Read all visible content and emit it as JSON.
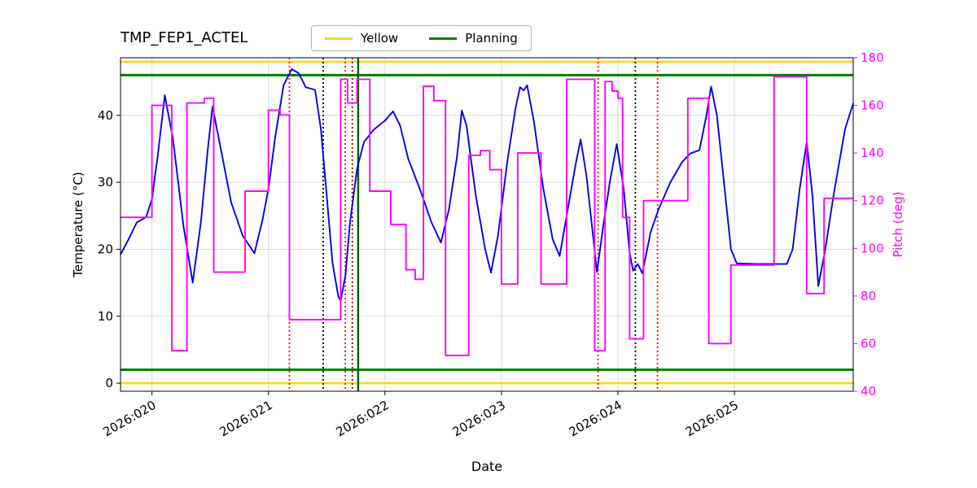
{
  "title": "TMP_FEP1_ACTEL",
  "legend": {
    "items": [
      {
        "label": "Yellow",
        "color": "#ffd700"
      },
      {
        "label": "Planning",
        "color": "#008000"
      }
    ]
  },
  "axes": {
    "x_label": "Date",
    "y_left_label": "Temperature (°C)",
    "y_right_label": "Pitch (deg)",
    "x_ticks": [
      {
        "value": 20,
        "label": "2026:020"
      },
      {
        "value": 21,
        "label": "2026:021"
      },
      {
        "value": 22,
        "label": "2026:022"
      },
      {
        "value": 23,
        "label": "2026:023"
      },
      {
        "value": 24,
        "label": "2026:024"
      },
      {
        "value": 25,
        "label": "2026:025"
      }
    ],
    "y_left_ticks": [
      0,
      10,
      20,
      30,
      40
    ],
    "y_right_ticks": [
      40,
      60,
      80,
      100,
      120,
      140,
      160,
      180
    ]
  },
  "chart_data": {
    "type": "line",
    "title": "TMP_FEP1_ACTEL",
    "xlabel": "Date",
    "ylabel_left": "Temperature (°C)",
    "ylabel_right": "Pitch (deg)",
    "grid": true,
    "xlim": [
      19.73,
      26.02
    ],
    "ylim_left": [
      -1.2,
      48.6
    ],
    "ylim_right": [
      40,
      180
    ],
    "colors": {
      "temperature": "#0000ee",
      "pitch": "#ff00ff",
      "yellow_limit": "#ffd700",
      "planning_limit": "#008000",
      "grid": "#d9d9d9"
    },
    "series": [
      {
        "name": "Temperature",
        "axis": "left",
        "style": "line",
        "color": "#0000ee",
        "points": [
          [
            19.73,
            19.2
          ],
          [
            19.8,
            21.5
          ],
          [
            19.87,
            24.0
          ],
          [
            19.95,
            24.8
          ],
          [
            20.0,
            27.5
          ],
          [
            20.05,
            34.0
          ],
          [
            20.11,
            43.0
          ],
          [
            20.18,
            36.5
          ],
          [
            20.27,
            23.5
          ],
          [
            20.35,
            15.0
          ],
          [
            20.42,
            24.0
          ],
          [
            20.48,
            35.0
          ],
          [
            20.52,
            41.3
          ],
          [
            20.58,
            36.0
          ],
          [
            20.68,
            27.0
          ],
          [
            20.78,
            22.0
          ],
          [
            20.88,
            19.4
          ],
          [
            20.95,
            24.5
          ],
          [
            21.0,
            29.0
          ],
          [
            21.06,
            37.0
          ],
          [
            21.13,
            44.5
          ],
          [
            21.2,
            46.9
          ],
          [
            21.26,
            46.3
          ],
          [
            21.32,
            44.2
          ],
          [
            21.4,
            43.8
          ],
          [
            21.45,
            38.0
          ],
          [
            21.5,
            28.0
          ],
          [
            21.55,
            18.0
          ],
          [
            21.6,
            12.9
          ],
          [
            21.62,
            12.3
          ],
          [
            21.66,
            16.0
          ],
          [
            21.7,
            24.0
          ],
          [
            21.76,
            32.0
          ],
          [
            21.82,
            36.0
          ],
          [
            21.9,
            37.8
          ],
          [
            22.0,
            39.2
          ],
          [
            22.07,
            40.6
          ],
          [
            22.13,
            38.5
          ],
          [
            22.2,
            33.5
          ],
          [
            22.3,
            29.0
          ],
          [
            22.4,
            24.0
          ],
          [
            22.48,
            21.0
          ],
          [
            22.55,
            26.0
          ],
          [
            22.62,
            34.0
          ],
          [
            22.66,
            40.7
          ],
          [
            22.7,
            38.5
          ],
          [
            22.78,
            28.0
          ],
          [
            22.86,
            20.0
          ],
          [
            22.91,
            16.5
          ],
          [
            22.97,
            22.0
          ],
          [
            23.05,
            33.0
          ],
          [
            23.12,
            41.0
          ],
          [
            23.16,
            44.2
          ],
          [
            23.19,
            43.7
          ],
          [
            23.22,
            44.5
          ],
          [
            23.28,
            39.0
          ],
          [
            23.36,
            29.0
          ],
          [
            23.44,
            21.5
          ],
          [
            23.5,
            19.0
          ],
          [
            23.57,
            26.0
          ],
          [
            23.64,
            33.0
          ],
          [
            23.68,
            36.4
          ],
          [
            23.73,
            31.0
          ],
          [
            23.78,
            23.0
          ],
          [
            23.82,
            16.6
          ],
          [
            23.87,
            23.0
          ],
          [
            23.93,
            30.0
          ],
          [
            23.99,
            35.7
          ],
          [
            24.05,
            29.0
          ],
          [
            24.1,
            19.5
          ],
          [
            24.13,
            16.8
          ],
          [
            24.17,
            17.8
          ],
          [
            24.21,
            16.4
          ],
          [
            24.28,
            22.5
          ],
          [
            24.35,
            26.0
          ],
          [
            24.45,
            30.0
          ],
          [
            24.55,
            33.0
          ],
          [
            24.62,
            34.3
          ],
          [
            24.7,
            34.8
          ],
          [
            24.76,
            40.0
          ],
          [
            24.8,
            44.3
          ],
          [
            24.85,
            40.0
          ],
          [
            24.91,
            30.0
          ],
          [
            24.97,
            20.0
          ],
          [
            25.02,
            17.9
          ],
          [
            25.2,
            17.8
          ],
          [
            25.45,
            17.8
          ],
          [
            25.5,
            20.0
          ],
          [
            25.56,
            29.0
          ],
          [
            25.62,
            36.0
          ],
          [
            25.67,
            28.0
          ],
          [
            25.72,
            14.5
          ],
          [
            25.78,
            20.0
          ],
          [
            25.85,
            28.0
          ],
          [
            25.95,
            38.0
          ],
          [
            26.02,
            41.8
          ]
        ]
      },
      {
        "name": "Pitch",
        "axis": "right",
        "style": "step",
        "color": "#ff00ff",
        "points": [
          [
            19.73,
            113
          ],
          [
            20.0,
            160
          ],
          [
            20.17,
            57
          ],
          [
            20.3,
            161
          ],
          [
            20.45,
            163
          ],
          [
            20.53,
            90
          ],
          [
            20.8,
            124
          ],
          [
            21.0,
            158
          ],
          [
            21.1,
            156
          ],
          [
            21.18,
            70
          ],
          [
            21.62,
            171
          ],
          [
            21.68,
            161
          ],
          [
            21.76,
            171
          ],
          [
            21.87,
            124
          ],
          [
            22.05,
            110
          ],
          [
            22.18,
            91
          ],
          [
            22.26,
            87
          ],
          [
            22.33,
            168
          ],
          [
            22.42,
            162
          ],
          [
            22.52,
            55
          ],
          [
            22.72,
            139
          ],
          [
            22.82,
            141
          ],
          [
            22.9,
            133
          ],
          [
            23.0,
            85
          ],
          [
            23.14,
            140
          ],
          [
            23.34,
            85
          ],
          [
            23.56,
            171
          ],
          [
            23.8,
            57
          ],
          [
            23.89,
            170
          ],
          [
            23.95,
            166
          ],
          [
            24.0,
            163
          ],
          [
            24.04,
            113
          ],
          [
            24.1,
            62
          ],
          [
            24.22,
            120
          ],
          [
            24.6,
            163
          ],
          [
            24.78,
            60
          ],
          [
            24.97,
            93
          ],
          [
            25.34,
            172
          ],
          [
            25.62,
            81
          ],
          [
            25.77,
            121
          ]
        ]
      }
    ],
    "hlines": [
      {
        "name": "yellow-upper",
        "y": 48.0,
        "color": "#ffd700",
        "width": 2.5
      },
      {
        "name": "yellow-lower",
        "y": 0.0,
        "color": "#ffd700",
        "width": 2.5
      },
      {
        "name": "planning-upper",
        "y": 46.0,
        "color": "#008000",
        "width": 3
      },
      {
        "name": "planning-lower",
        "y": 2.0,
        "color": "#008000",
        "width": 3
      }
    ],
    "vlines": [
      {
        "x": 21.18,
        "color": "#ff0000",
        "style": "dotted",
        "width": 1.8
      },
      {
        "x": 21.47,
        "color": "#000000",
        "style": "dotted",
        "width": 1.8
      },
      {
        "x": 21.66,
        "color": "#ff0000",
        "style": "dotted",
        "width": 1.8
      },
      {
        "x": 21.72,
        "color": "#a00000",
        "style": "dotted",
        "width": 1.8
      },
      {
        "x": 21.77,
        "color": "#006400",
        "style": "solid",
        "width": 2.5
      },
      {
        "x": 23.83,
        "color": "#ff0000",
        "style": "dotted",
        "width": 1.8
      },
      {
        "x": 24.15,
        "color": "#000000",
        "style": "dotted",
        "width": 1.8
      },
      {
        "x": 24.34,
        "color": "#ff0000",
        "style": "dotted",
        "width": 1.8
      }
    ]
  }
}
